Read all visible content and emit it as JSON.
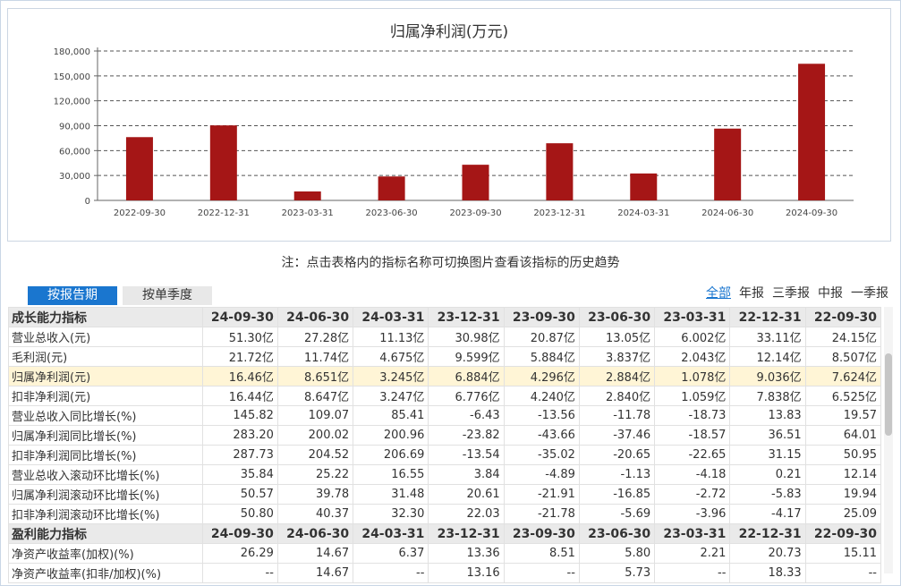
{
  "chart_data": {
    "type": "bar",
    "title": "归属净利润(万元)",
    "categories": [
      "2022-09-30",
      "2022-12-31",
      "2023-03-31",
      "2023-06-30",
      "2023-09-30",
      "2023-12-31",
      "2024-03-31",
      "2024-06-30",
      "2024-09-30"
    ],
    "values": [
      76240,
      90360,
      10780,
      28840,
      42960,
      68840,
      32450,
      86510,
      164600
    ],
    "ylim": [
      0,
      180000
    ],
    "yticks": [
      0,
      30000,
      60000,
      90000,
      120000,
      150000,
      180000
    ],
    "ytick_labels": [
      "0",
      "30,000",
      "60,000",
      "90,000",
      "120,000",
      "150,000",
      "180,000"
    ],
    "bar_color": "#a51616",
    "grid": "dashed horizontal"
  },
  "note": "注：点击表格内的指标名称可切换图片查看该指标的历史趋势",
  "tabs": {
    "by_report": "按报告期",
    "by_quarter": "按单季度"
  },
  "periods": [
    "全部",
    "年报",
    "三季报",
    "中报",
    "一季报"
  ],
  "table": {
    "sections": [
      {
        "title": "成长能力指标",
        "dates": [
          "24-09-30",
          "24-06-30",
          "24-03-31",
          "23-12-31",
          "23-09-30",
          "23-06-30",
          "23-03-31",
          "22-12-31",
          "22-09-30"
        ],
        "rows": [
          {
            "name": "营业总收入(元)",
            "values": [
              "51.30亿",
              "27.28亿",
              "11.13亿",
              "30.98亿",
              "20.87亿",
              "13.05亿",
              "6.002亿",
              "33.11亿",
              "24.15亿"
            ]
          },
          {
            "name": "毛利润(元)",
            "values": [
              "21.72亿",
              "11.74亿",
              "4.675亿",
              "9.599亿",
              "5.884亿",
              "3.837亿",
              "2.043亿",
              "12.14亿",
              "8.507亿"
            ]
          },
          {
            "name": "归属净利润(元)",
            "highlight": true,
            "values": [
              "16.46亿",
              "8.651亿",
              "3.245亿",
              "6.884亿",
              "4.296亿",
              "2.884亿",
              "1.078亿",
              "9.036亿",
              "7.624亿"
            ]
          },
          {
            "name": "扣非净利润(元)",
            "values": [
              "16.44亿",
              "8.647亿",
              "3.247亿",
              "6.776亿",
              "4.240亿",
              "2.840亿",
              "1.059亿",
              "7.838亿",
              "6.525亿"
            ]
          },
          {
            "name": "营业总收入同比增长(%)",
            "values": [
              "145.82",
              "109.07",
              "85.41",
              "-6.43",
              "-13.56",
              "-11.78",
              "-18.73",
              "13.83",
              "19.57"
            ]
          },
          {
            "name": "归属净利润同比增长(%)",
            "values": [
              "283.20",
              "200.02",
              "200.96",
              "-23.82",
              "-43.66",
              "-37.46",
              "-18.57",
              "36.51",
              "64.01"
            ]
          },
          {
            "name": "扣非净利润同比增长(%)",
            "values": [
              "287.73",
              "204.52",
              "206.69",
              "-13.54",
              "-35.02",
              "-20.65",
              "-22.65",
              "31.15",
              "50.95"
            ]
          },
          {
            "name": "营业总收入滚动环比增长(%)",
            "values": [
              "35.84",
              "25.22",
              "16.55",
              "3.84",
              "-4.89",
              "-1.13",
              "-4.18",
              "0.21",
              "12.14"
            ]
          },
          {
            "name": "归属净利润滚动环比增长(%)",
            "values": [
              "50.57",
              "39.78",
              "31.48",
              "20.61",
              "-21.91",
              "-16.85",
              "-2.72",
              "-5.83",
              "19.94"
            ]
          },
          {
            "name": "扣非净利润滚动环比增长(%)",
            "values": [
              "50.80",
              "40.37",
              "32.30",
              "22.03",
              "-21.78",
              "-5.69",
              "-3.96",
              "-4.17",
              "25.09"
            ]
          }
        ]
      },
      {
        "title": "盈利能力指标",
        "dates": [
          "24-09-30",
          "24-06-30",
          "24-03-31",
          "23-12-31",
          "23-09-30",
          "23-06-30",
          "23-03-31",
          "22-12-31",
          "22-09-30"
        ],
        "rows": [
          {
            "name": "净资产收益率(加权)(%)",
            "values": [
              "26.29",
              "14.67",
              "6.37",
              "13.36",
              "8.51",
              "5.80",
              "2.21",
              "20.73",
              "15.11"
            ]
          },
          {
            "name": "净资产收益率(扣非/加权)(%)",
            "values": [
              "--",
              "14.67",
              "--",
              "13.16",
              "--",
              "5.73",
              "--",
              "18.33",
              "--"
            ]
          }
        ]
      }
    ]
  },
  "colors": {
    "accent": "#1a76cf",
    "highlight_row": "#fff5d6",
    "section_bg": "#eaeaea"
  }
}
